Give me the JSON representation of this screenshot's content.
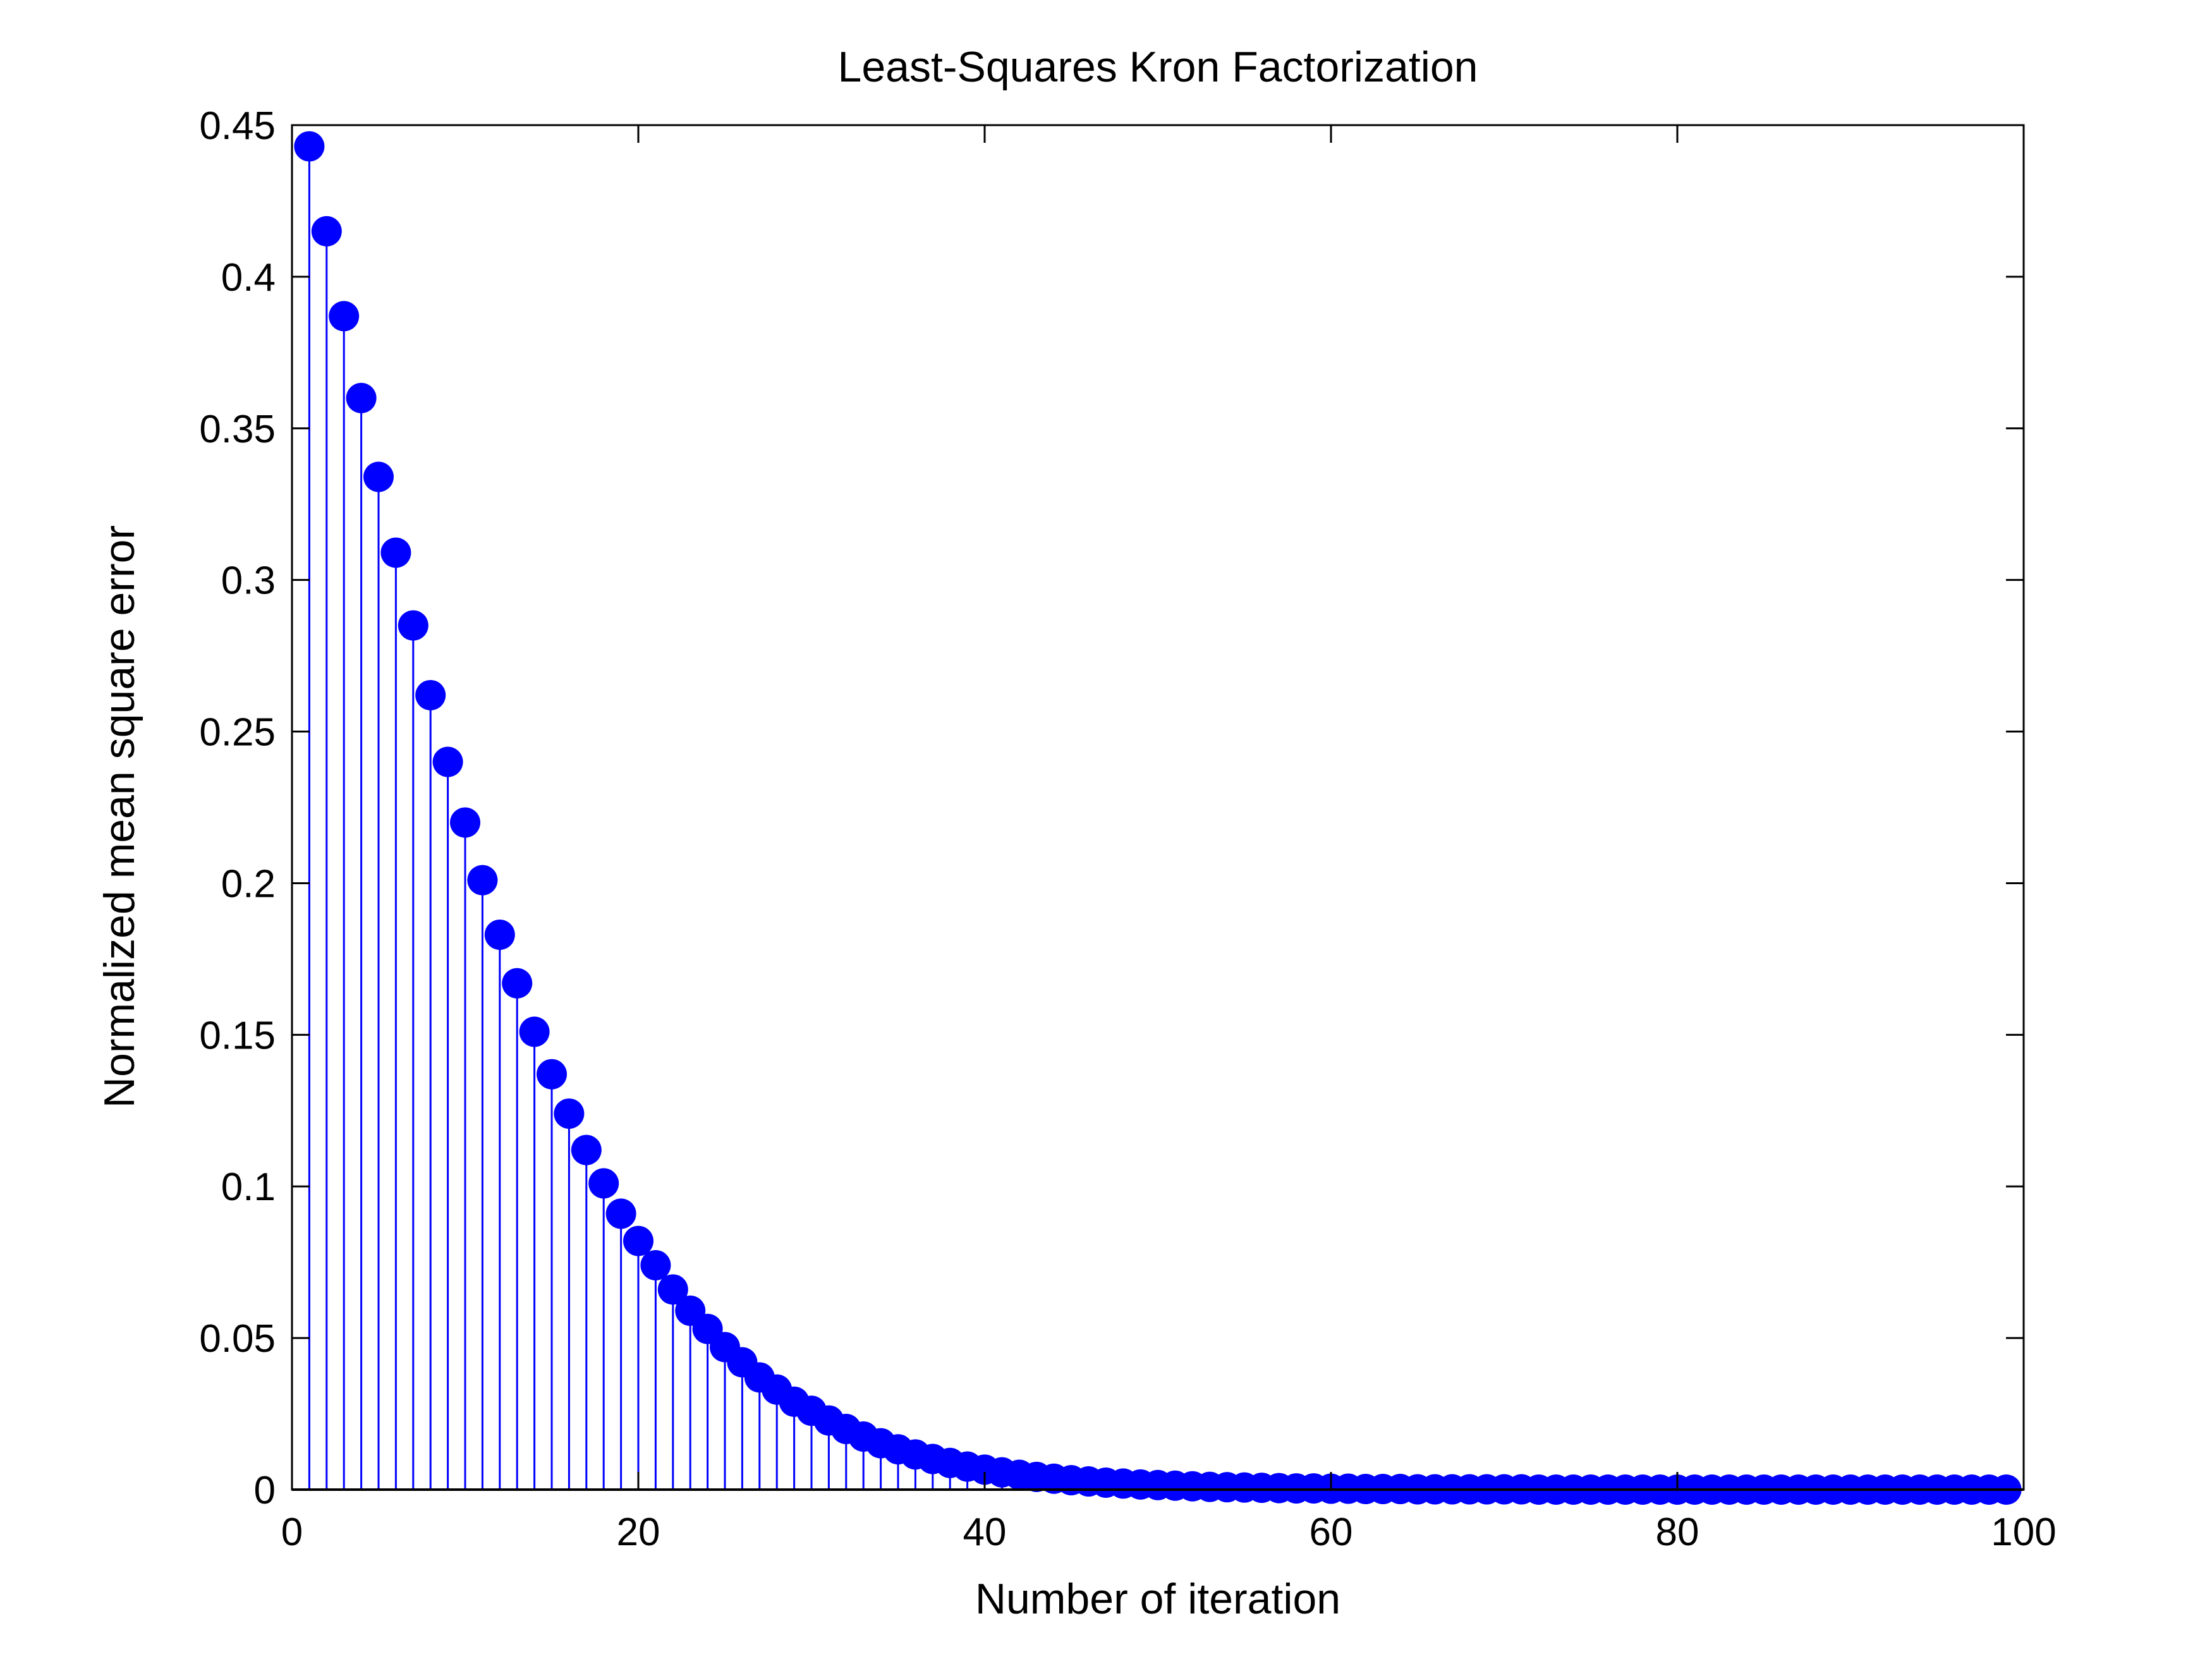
{
  "chart_data": {
    "type": "stem",
    "title": "Least-Squares Kron Factorization",
    "xlabel": "Number of iteration",
    "ylabel": "Normalized mean square error",
    "xlim": [
      0,
      100
    ],
    "ylim": [
      0,
      0.45
    ],
    "xticks": [
      0,
      20,
      40,
      60,
      80,
      100
    ],
    "xtick_labels": [
      "0",
      "20",
      "40",
      "60",
      "80",
      "100"
    ],
    "yticks": [
      0,
      0.05,
      0.1,
      0.15,
      0.2,
      0.25,
      0.3,
      0.35,
      0.4,
      0.45
    ],
    "ytick_labels": [
      "0",
      "0.05",
      "0.1",
      "0.15",
      "0.2",
      "0.25",
      "0.3",
      "0.35",
      "0.4",
      "0.45"
    ],
    "grid": false,
    "marker": "filled-circle",
    "color": "#0000FF",
    "series": [
      {
        "x": [
          1,
          2,
          3,
          4,
          5,
          6,
          7,
          8,
          9,
          10,
          11,
          12,
          13,
          14,
          15,
          16,
          17,
          18,
          19,
          20,
          21,
          22,
          23,
          24,
          25,
          26,
          27,
          28,
          29,
          30,
          31,
          32,
          33,
          34,
          35,
          36,
          37,
          38,
          39,
          40,
          41,
          42,
          43,
          44,
          45,
          46,
          47,
          48,
          49,
          50,
          51,
          52,
          53,
          54,
          55,
          56,
          57,
          58,
          59,
          60,
          61,
          62,
          63,
          64,
          65,
          66,
          67,
          68,
          69,
          70,
          71,
          72,
          73,
          74,
          75,
          76,
          77,
          78,
          79,
          80,
          81,
          82,
          83,
          84,
          85,
          86,
          87,
          88,
          89,
          90,
          91,
          92,
          93,
          94,
          95,
          96,
          97,
          98,
          99
        ],
        "y": [
          0.443,
          0.415,
          0.387,
          0.36,
          0.334,
          0.309,
          0.285,
          0.262,
          0.24,
          0.22,
          0.201,
          0.183,
          0.167,
          0.151,
          0.137,
          0.124,
          0.112,
          0.101,
          0.091,
          0.082,
          0.074,
          0.066,
          0.059,
          0.053,
          0.047,
          0.042,
          0.037,
          0.033,
          0.029,
          0.026,
          0.0228,
          0.02,
          0.0175,
          0.0153,
          0.0133,
          0.0116,
          0.0101,
          0.0088,
          0.0076,
          0.0066,
          0.0057,
          0.0049,
          0.0042,
          0.0036,
          0.0031,
          0.0027,
          0.0023,
          0.002,
          0.0017,
          0.0015,
          0.0013,
          0.0011,
          0.0009,
          0.0008,
          0.0007,
          0.0006,
          0.0005,
          0.0004,
          0.0004,
          0.0003,
          0.0003,
          0.0002,
          0.0002,
          0.0002,
          0.0001,
          0.0001,
          0.0001,
          0.0001,
          0.0001,
          0.0001,
          0.0001,
          0,
          0,
          0,
          0,
          0,
          0,
          0,
          0,
          0,
          0,
          0,
          0,
          0,
          0,
          0,
          0,
          0,
          0,
          0,
          0,
          0,
          0,
          0,
          0,
          0,
          0,
          0,
          0
        ]
      }
    ]
  }
}
